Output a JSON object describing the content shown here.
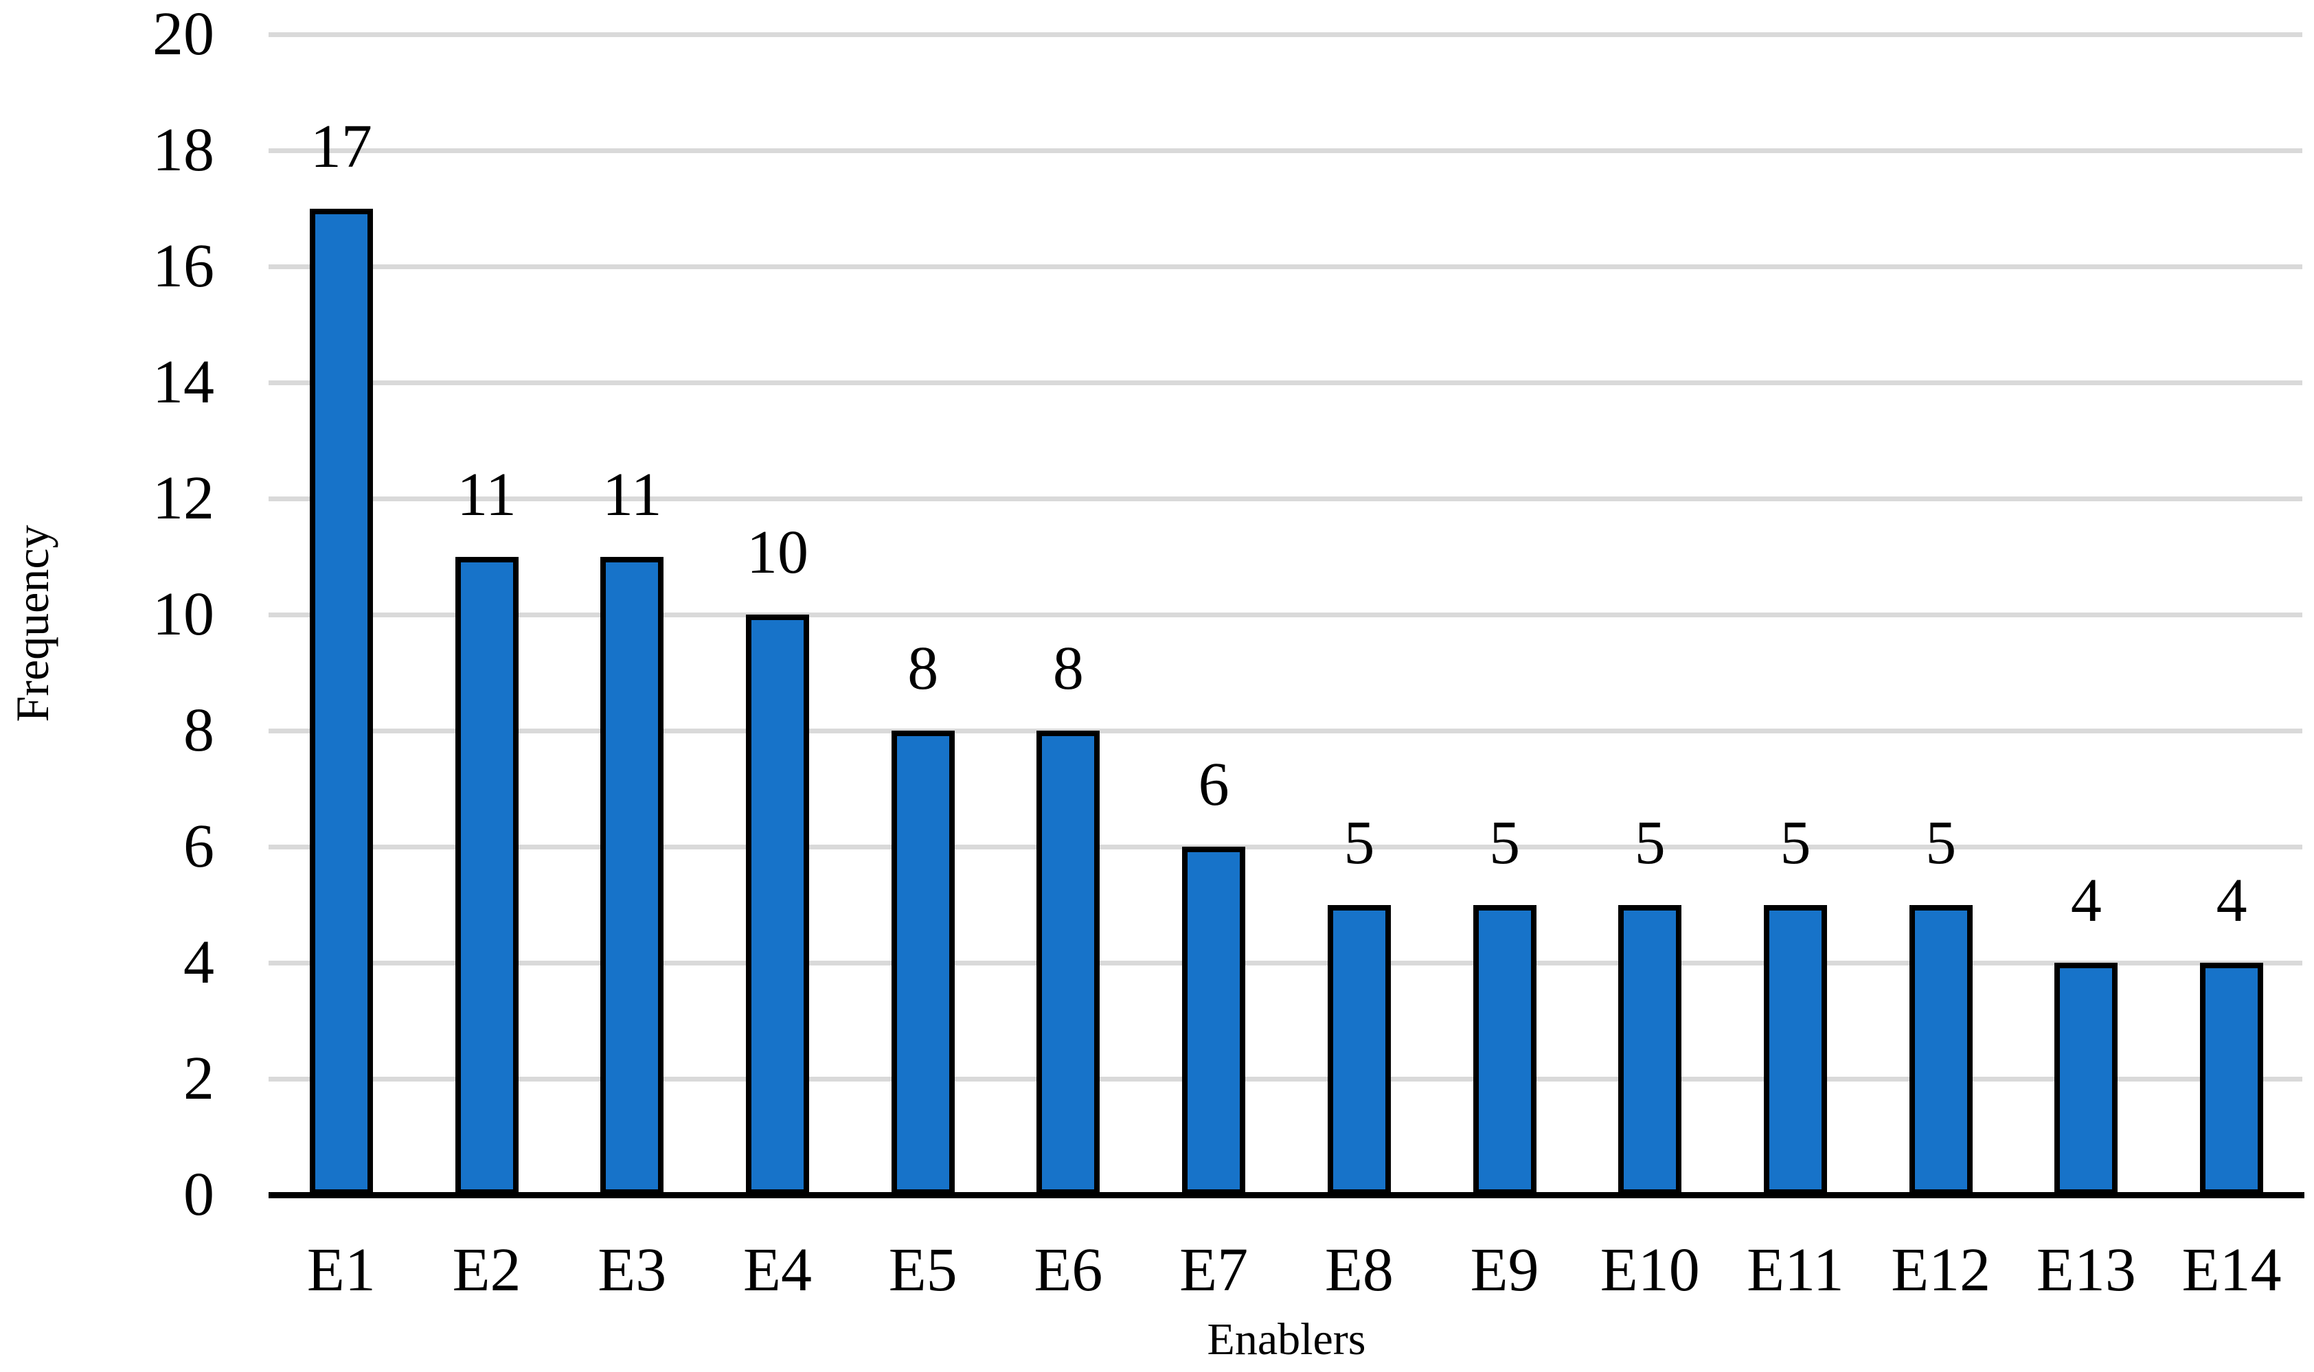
{
  "chart_data": {
    "type": "bar",
    "title": "",
    "xlabel": "Enablers",
    "ylabel": "Frequency",
    "categories": [
      "E1",
      "E2",
      "E3",
      "E4",
      "E5",
      "E6",
      "E7",
      "E8",
      "E9",
      "E10",
      "E11",
      "E12",
      "E13",
      "E14"
    ],
    "values": [
      17,
      11,
      11,
      10,
      8,
      8,
      6,
      5,
      5,
      5,
      5,
      5,
      4,
      4
    ],
    "data_labels_shown": true,
    "ylim": [
      0,
      20
    ],
    "ytick_step": 2,
    "ytick_labels": [
      "0",
      "2",
      "4",
      "6",
      "8",
      "10",
      "12",
      "14",
      "16",
      "18",
      "20"
    ],
    "grid": "horizontal",
    "legend": "none",
    "colors": {
      "bar_fill": "#1773C9",
      "bar_border": "#000000",
      "gridline": "#D9D9D9",
      "axis_line": "#000000",
      "text": "#000000",
      "background": "#FFFFFF"
    }
  }
}
